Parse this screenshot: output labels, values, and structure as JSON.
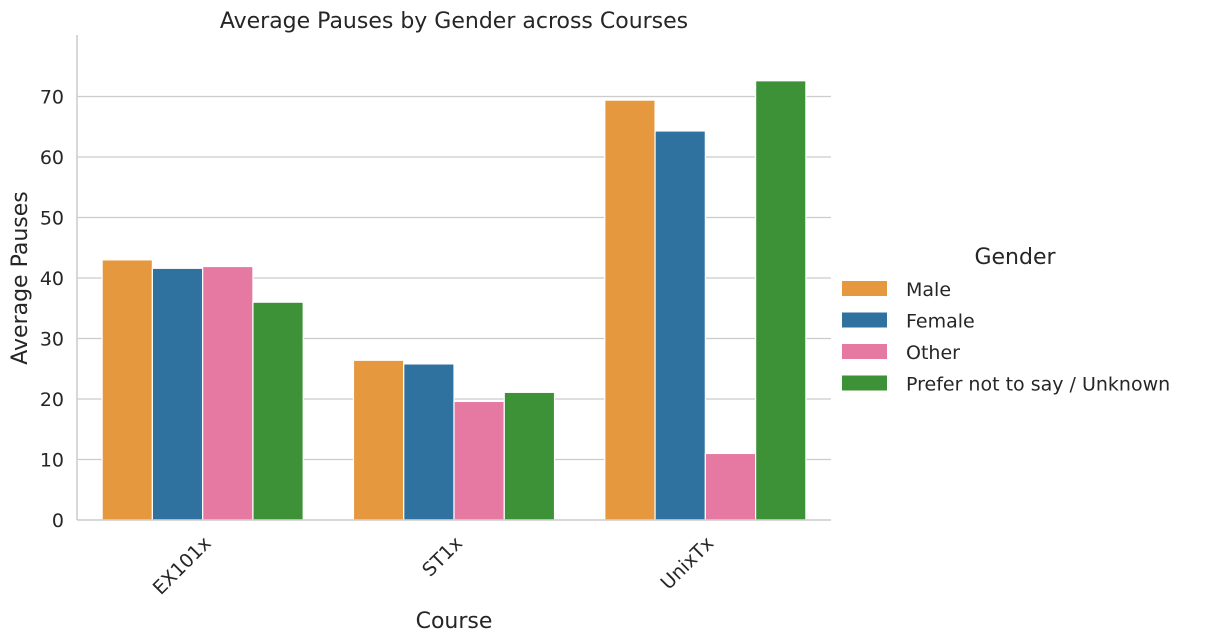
{
  "chart_data": {
    "type": "bar",
    "title": "Average Pauses by Gender across Courses",
    "xlabel": "Course",
    "ylabel": "Average Pauses",
    "categories": [
      "EX101x",
      "ST1x",
      "UnixTx"
    ],
    "series": [
      {
        "name": "Male",
        "color": "#e6983f",
        "values": [
          43.0,
          26.4,
          69.4
        ]
      },
      {
        "name": "Female",
        "color": "#2f72a0",
        "values": [
          41.6,
          25.8,
          64.3
        ]
      },
      {
        "name": "Other",
        "color": "#e679a2",
        "values": [
          41.9,
          19.6,
          11.0
        ]
      },
      {
        "name": "Prefer not to say / Unknown",
        "color": "#3d9137",
        "values": [
          36.0,
          21.1,
          72.6
        ]
      }
    ],
    "ylim": [
      0,
      80
    ],
    "yticks": [
      0,
      10,
      20,
      30,
      40,
      50,
      60,
      70
    ],
    "grid": true,
    "legend_title": "Gender",
    "legend_position": "right"
  }
}
